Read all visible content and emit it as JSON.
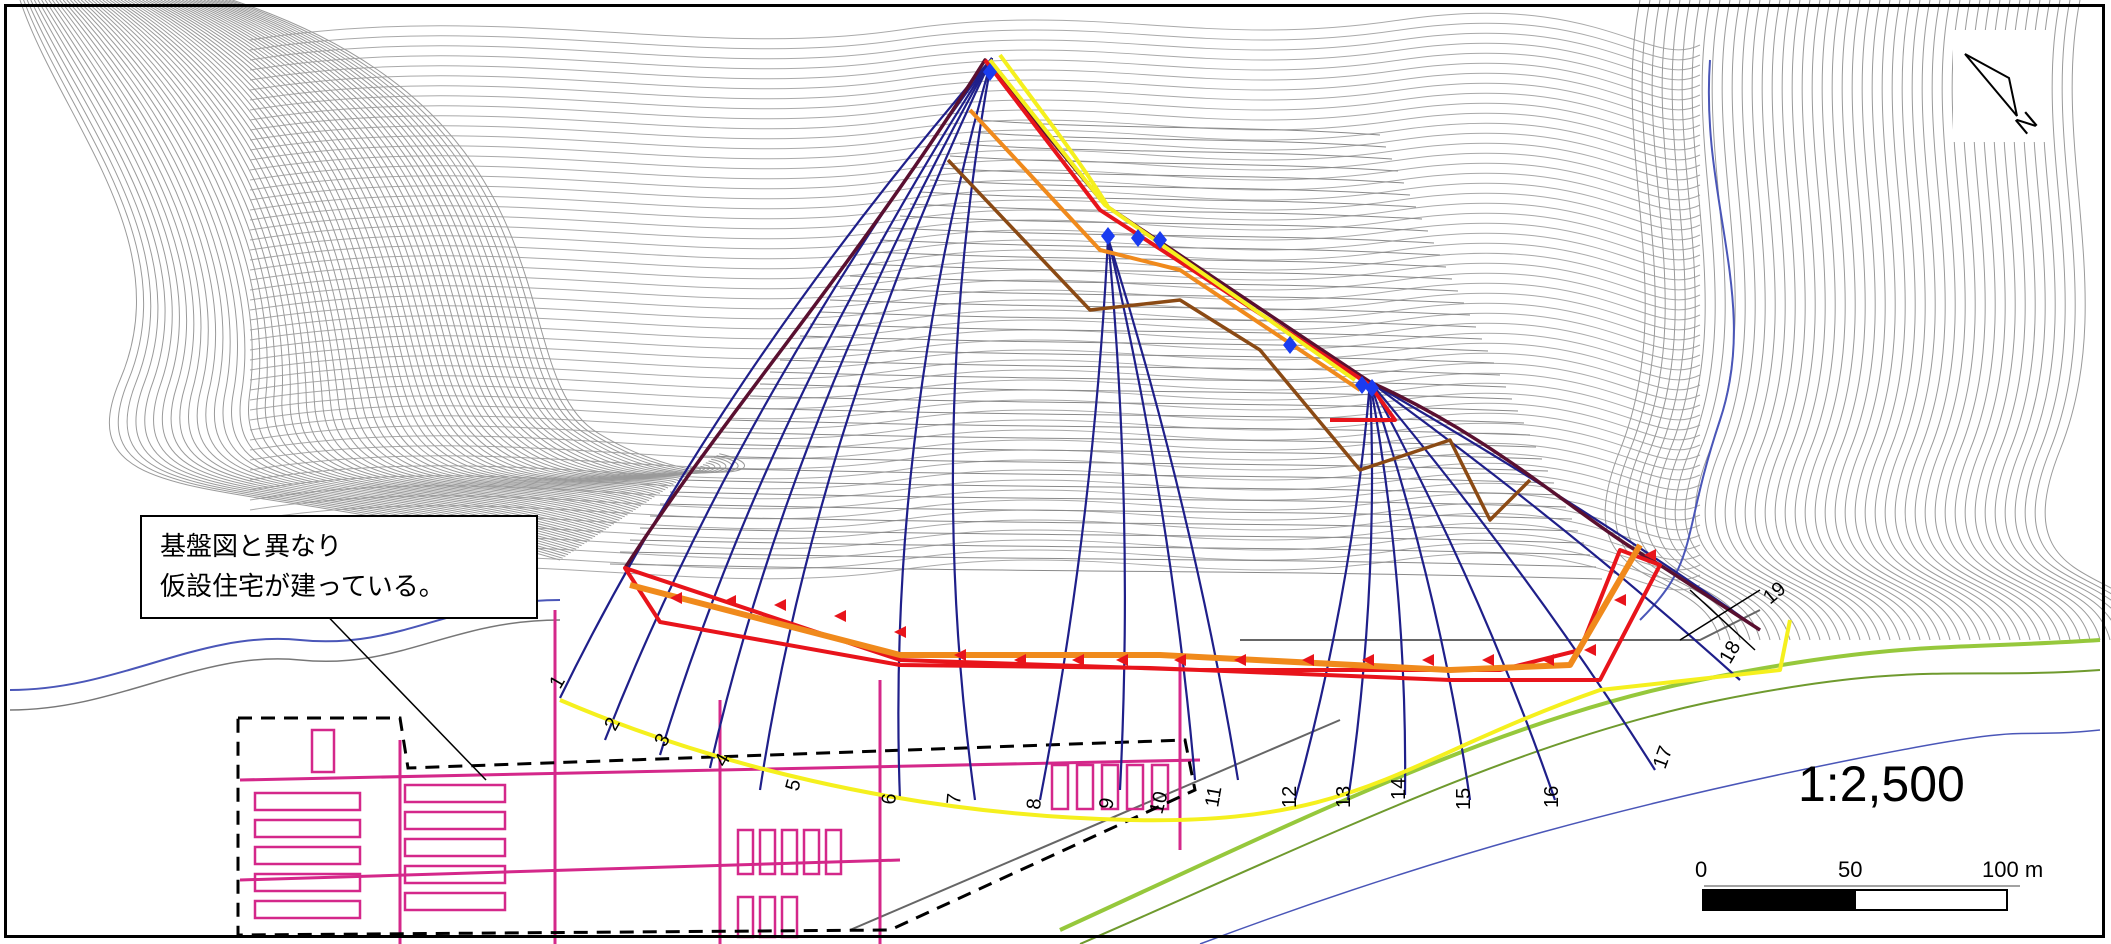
{
  "map": {
    "annotation": {
      "line1": "基盤図と異なり",
      "line2": "仮設住宅が建っている。"
    },
    "scale_ratio": "1:2,500",
    "scale_bar": {
      "tick_0": "0",
      "tick_50": "50",
      "tick_100": "100 m"
    },
    "north_arrow": {
      "letter": "N",
      "icon": "north-arrow-icon"
    },
    "section_labels": [
      "1",
      "2",
      "3",
      "4",
      "5",
      "6",
      "7",
      "8",
      "9",
      "10",
      "11",
      "12",
      "13",
      "14",
      "15",
      "16",
      "17",
      "18",
      "19"
    ],
    "colors": {
      "contour": "#9a9a9a",
      "section_lines": "#1f1f8a",
      "boundary_red": "#e8141b",
      "boundary_orange": "#f08a1c",
      "boundary_brown": "#8b4a14",
      "boundary_yellow": "#f5f01e",
      "boundary_purple": "#5a1030",
      "buildings": "#d4288a",
      "road_green": "#96c83c",
      "river_blue": "#4a56b8",
      "points": "#1a3cf0",
      "arrows": "#e8141b"
    }
  }
}
